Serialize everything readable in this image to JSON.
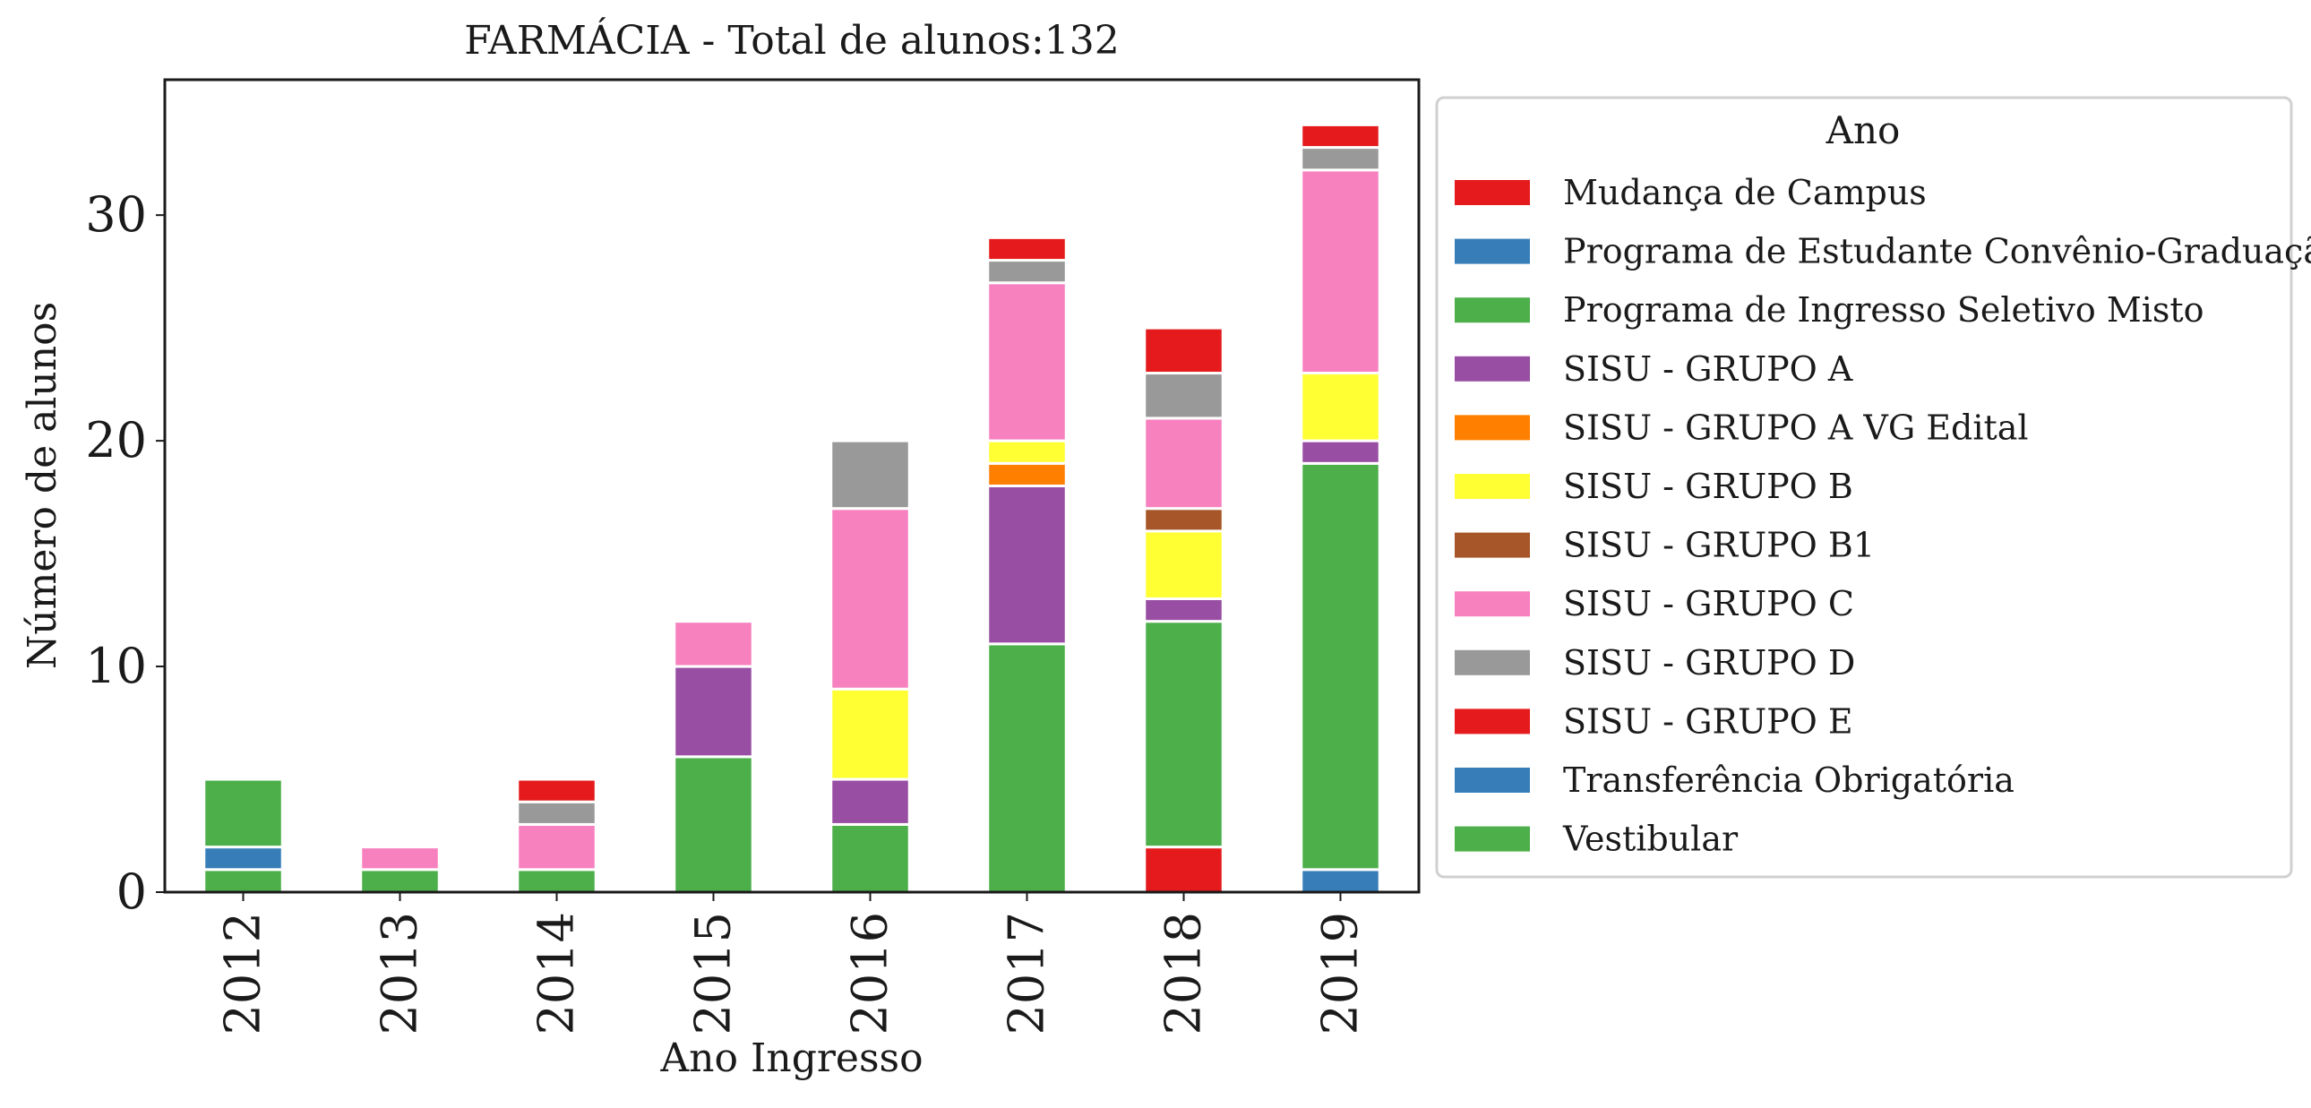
{
  "chart_data": {
    "type": "bar",
    "stacked": true,
    "title": "FARMÁCIA - Total de alunos:132",
    "xlabel": "Ano Ingresso",
    "ylabel": "Número de alunos",
    "ylim": [
      0,
      36
    ],
    "yticks": [
      0,
      10,
      20,
      30
    ],
    "grid": false,
    "legend": {
      "title": "Ano",
      "placement": "outside-right"
    },
    "categories": [
      "2012",
      "2013",
      "2014",
      "2015",
      "2016",
      "2017",
      "2018",
      "2019"
    ],
    "series": [
      {
        "name": "Mudança de Campus",
        "color": "#e41a1c",
        "values": [
          0,
          0,
          0,
          0,
          0,
          0,
          2,
          0
        ]
      },
      {
        "name": "Programa de Estudante Convênio-Graduação",
        "color": "#377eb8",
        "values": [
          0,
          0,
          0,
          0,
          0,
          0,
          0,
          1
        ]
      },
      {
        "name": "Programa de Ingresso Seletivo Misto",
        "color": "#4daf4a",
        "values": [
          1,
          1,
          1,
          6,
          3,
          11,
          10,
          18
        ]
      },
      {
        "name": "SISU - GRUPO A",
        "color": "#984ea3",
        "values": [
          0,
          0,
          0,
          4,
          2,
          7,
          1,
          1
        ]
      },
      {
        "name": "SISU - GRUPO A VG Edital",
        "color": "#ff7f00",
        "values": [
          0,
          0,
          0,
          0,
          0,
          1,
          0,
          0
        ]
      },
      {
        "name": "SISU - GRUPO B",
        "color": "#ffff33",
        "values": [
          0,
          0,
          0,
          0,
          4,
          1,
          3,
          3
        ]
      },
      {
        "name": "SISU - GRUPO B1",
        "color": "#a65628",
        "values": [
          0,
          0,
          0,
          0,
          0,
          0,
          1,
          0
        ]
      },
      {
        "name": "SISU - GRUPO C",
        "color": "#f781bf",
        "values": [
          0,
          1,
          2,
          2,
          8,
          7,
          4,
          9
        ]
      },
      {
        "name": "SISU - GRUPO D",
        "color": "#999999",
        "values": [
          0,
          0,
          1,
          0,
          3,
          1,
          2,
          1
        ]
      },
      {
        "name": "SISU - GRUPO E",
        "color": "#e41a1c",
        "values": [
          0,
          0,
          1,
          0,
          0,
          1,
          2,
          1
        ]
      },
      {
        "name": "Transferência Obrigatória",
        "color": "#377eb8",
        "values": [
          1,
          0,
          0,
          0,
          0,
          0,
          0,
          0
        ]
      },
      {
        "name": "Vestibular",
        "color": "#4daf4a",
        "values": [
          3,
          0,
          0,
          0,
          0,
          0,
          0,
          0
        ]
      }
    ]
  }
}
